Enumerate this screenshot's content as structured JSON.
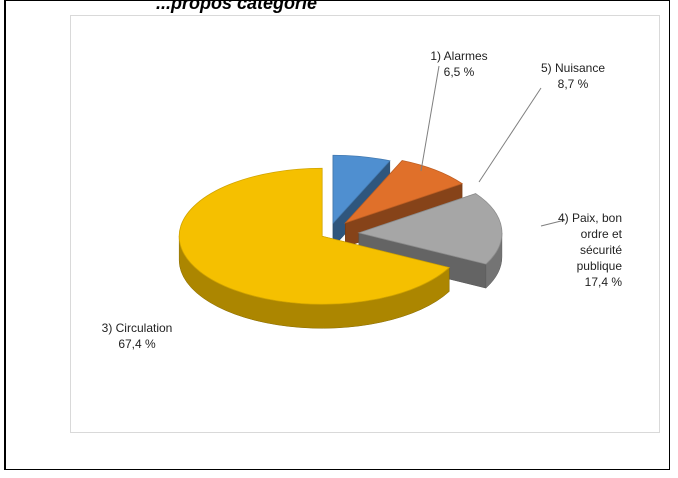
{
  "heading": "...propos catégorie",
  "chart_data": {
    "type": "pie",
    "title": "",
    "slices": [
      {
        "label_lines": [
          "1) Alarmes",
          "6,5 %"
        ],
        "name": "1) Alarmes",
        "value": 6.5,
        "color": "#4f8fd0"
      },
      {
        "label_lines": [
          "5) Nuisance",
          "8,7 %"
        ],
        "name": "5) Nuisance",
        "value": 8.7,
        "color": "#e0702a"
      },
      {
        "label_lines": [
          "4) Paix, bon",
          "ordre et",
          "sécurité",
          "publique",
          "17,4 %"
        ],
        "name": "4) Paix, bon ordre et sécurité publique",
        "value": 17.4,
        "color": "#a6a6a6"
      },
      {
        "label_lines": [
          "3) Circulation",
          "67,4 %"
        ],
        "name": "3) Circulation",
        "value": 67.4,
        "color": "#f5c000"
      }
    ]
  }
}
